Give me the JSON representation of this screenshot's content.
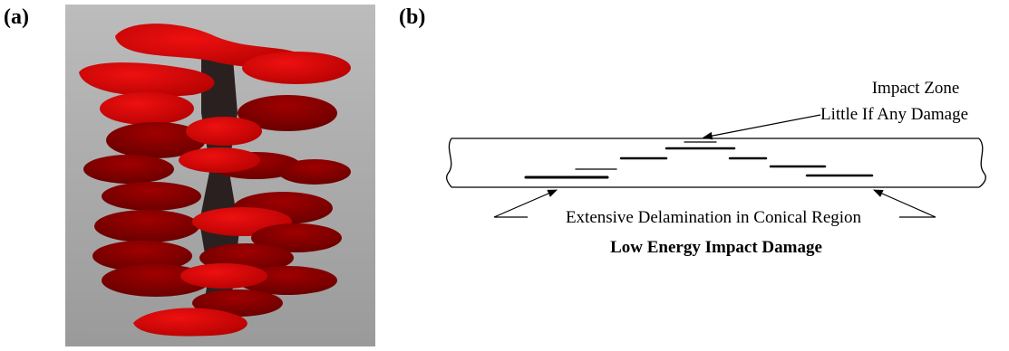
{
  "panels": {
    "a": {
      "label": "(a)"
    },
    "b": {
      "label": "(b)"
    }
  },
  "diagram": {
    "impact_zone": "Impact Zone",
    "little_damage": "Little If Any Damage",
    "extensive": "Extensive Delamination in Conical Region",
    "caption": "Low Energy Impact Damage"
  },
  "colors": {
    "background_gray": "#a6a6a6",
    "delamination_red": "#d40000",
    "core_dark": "#2a2020",
    "line": "#000000"
  }
}
